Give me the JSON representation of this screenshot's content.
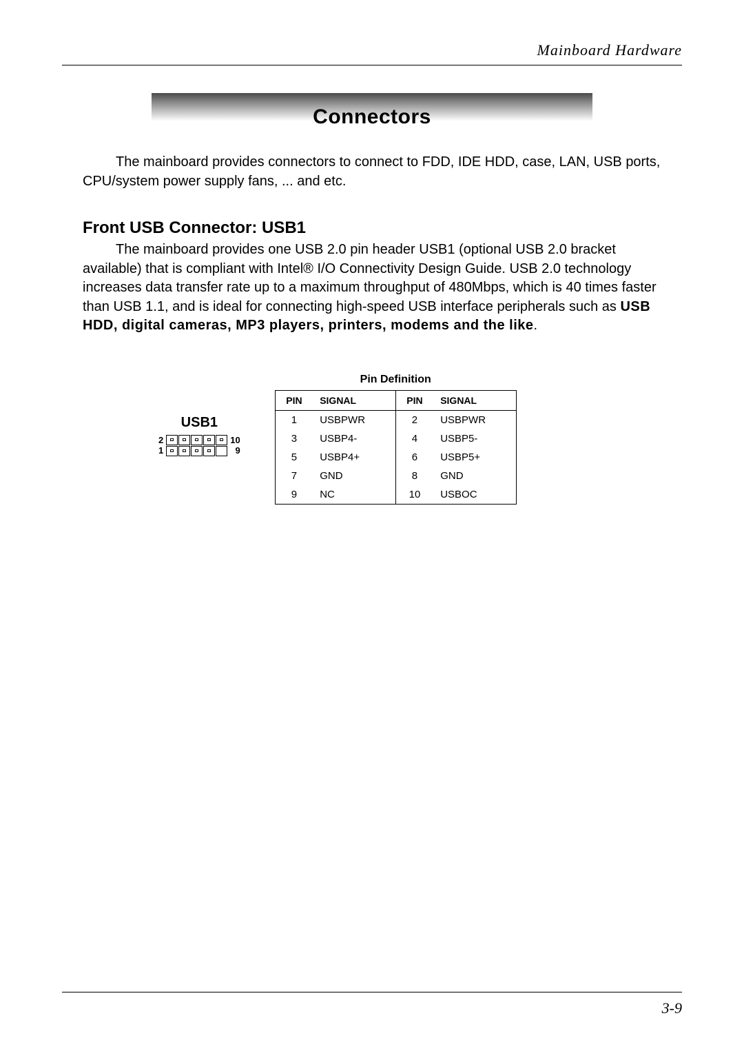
{
  "header": {
    "chapter_title": "Mainboard Hardware"
  },
  "banner": {
    "title": "Connectors"
  },
  "intro": {
    "text": "The mainboard provides connectors to connect to FDD, IDE HDD, case, LAN, USB ports, CPU/system power supply fans, ... and etc."
  },
  "section": {
    "heading": "Front USB Connector: USB1",
    "para_prefix": "The mainboard provides one USB 2.0 pin header USB1 (optional USB 2.0 bracket available) that is compliant with Intel® I/O Connectivity Design Guide. USB 2.0 technology increases data transfer rate up to a maximum throughput of 480Mbps, which is 40 times faster than USB 1.1, and is ideal for connecting high-speed USB interface peripherals such as ",
    "bold_list": "USB HDD, digital cameras, MP3 players, printers, modems and the like",
    "period": "."
  },
  "diagram": {
    "label": "USB1",
    "left_top": "2",
    "left_bottom": "1",
    "right_top": "10",
    "right_bottom": "9",
    "cols": 5,
    "rows": 2,
    "empty_position": "bottom-right"
  },
  "table": {
    "caption": "Pin Definition",
    "headers": {
      "pin": "PIN",
      "signal": "SIGNAL"
    },
    "rows": [
      {
        "pin_a": "1",
        "sig_a": "USBPWR",
        "pin_b": "2",
        "sig_b": "USBPWR"
      },
      {
        "pin_a": "3",
        "sig_a": "USBP4-",
        "pin_b": "4",
        "sig_b": "USBP5-"
      },
      {
        "pin_a": "5",
        "sig_a": "USBP4+",
        "pin_b": "6",
        "sig_b": "USBP5+"
      },
      {
        "pin_a": "7",
        "sig_a": "GND",
        "pin_b": "8",
        "sig_b": "GND"
      },
      {
        "pin_a": "9",
        "sig_a": "NC",
        "pin_b": "10",
        "sig_b": "USBOC"
      }
    ]
  },
  "footer": {
    "page_number": "3-9"
  },
  "colors": {
    "text": "#000000",
    "background": "#ffffff",
    "banner_gradient_top": "#4a4a4a",
    "banner_gradient_mid": "#8e8e8e",
    "banner_gradient_bottom": "#ffffff",
    "rule": "#000000"
  },
  "typography": {
    "body_fontsize_pt": 15,
    "heading_fontsize_pt": 18,
    "banner_fontsize_pt": 22,
    "header_font": "Times-Italic",
    "table_fontsize_pt": 11
  }
}
